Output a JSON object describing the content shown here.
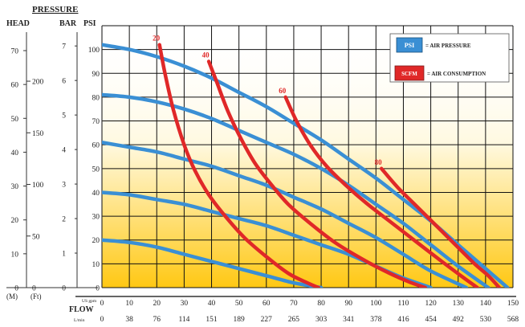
{
  "header": {
    "pressure": "PRESSURE",
    "head": "HEAD",
    "bar": "BAR",
    "psi": "PSI",
    "unit_m": "(M)",
    "unit_ft": "(Ft)",
    "flow": "FLOW",
    "us_gpm": "US gpm",
    "lmin": "L/min"
  },
  "legend": {
    "psi_swatch": "PSI",
    "psi_text": "= AIR PRESSURE",
    "psi_color": "#3a8fd4",
    "scfm_swatch": "SCFM",
    "scfm_text": "= AIR CONSUMPTION",
    "scfm_color": "#e02828"
  },
  "colors": {
    "gradient_top": "#fff9e0",
    "gradient_bottom": "#ffc814",
    "grid": "#111111"
  },
  "chart_data": {
    "type": "line",
    "title": "",
    "xlabel": "FLOW",
    "xlim": [
      0,
      150
    ],
    "ylim": [
      0,
      110
    ],
    "x_ticks_gpm": [
      "0",
      "10",
      "20",
      "30",
      "40",
      "50",
      "60",
      "70",
      "80",
      "90",
      "100",
      "110",
      "120",
      "130",
      "140",
      "150"
    ],
    "x_ticks_lmin": [
      "0",
      "38",
      "76",
      "114",
      "151",
      "189",
      "227",
      "265",
      "303",
      "341",
      "378",
      "416",
      "454",
      "492",
      "530",
      "568"
    ],
    "psi_ticks": [
      "0",
      "10",
      "20",
      "30",
      "40",
      "50",
      "60",
      "70",
      "80",
      "90",
      "100"
    ],
    "bar_ticks": [
      "0",
      "1",
      "2",
      "3",
      "4",
      "5",
      "6",
      "7"
    ],
    "head_m_ticks": [
      "0",
      "10",
      "20",
      "30",
      "40",
      "50",
      "60",
      "70"
    ],
    "head_ft_ticks": [
      "0",
      "50",
      "100",
      "150",
      "200"
    ],
    "series": [
      {
        "name": "100",
        "kind": "psi",
        "x": [
          0,
          10,
          20,
          30,
          40,
          50,
          60,
          70,
          80,
          90,
          100,
          110,
          120,
          130,
          140,
          148
        ],
        "y": [
          102,
          100,
          97,
          93,
          88,
          82,
          76,
          69,
          62,
          54,
          46,
          37,
          28,
          18,
          8,
          0
        ]
      },
      {
        "name": "80",
        "kind": "psi",
        "x": [
          0,
          10,
          20,
          30,
          40,
          50,
          60,
          70,
          80,
          90,
          100,
          110,
          120,
          130,
          141
        ],
        "y": [
          81,
          80,
          78,
          75,
          71,
          66,
          61,
          56,
          50,
          43,
          35,
          27,
          18,
          9,
          0
        ]
      },
      {
        "name": "60",
        "kind": "psi",
        "x": [
          0,
          10,
          20,
          30,
          40,
          50,
          60,
          70,
          80,
          90,
          100,
          110,
          120,
          133
        ],
        "y": [
          61,
          59,
          57,
          54,
          51,
          47,
          43,
          38,
          33,
          27,
          21,
          14,
          7,
          0
        ]
      },
      {
        "name": "40",
        "kind": "psi",
        "x": [
          0,
          10,
          20,
          30,
          40,
          50,
          60,
          70,
          80,
          90,
          100,
          110,
          120
        ],
        "y": [
          40,
          39,
          37,
          35,
          32,
          29,
          26,
          22,
          18,
          14,
          9,
          4,
          0
        ]
      },
      {
        "name": "20",
        "kind": "psi",
        "x": [
          0,
          10,
          20,
          30,
          40,
          50,
          60,
          70,
          80
        ],
        "y": [
          20,
          19,
          17,
          14,
          11,
          8,
          5,
          2,
          0
        ]
      },
      {
        "name": "20",
        "kind": "scfm",
        "x": [
          21,
          23,
          26,
          30,
          34,
          39,
          45,
          52,
          60,
          68,
          75,
          79
        ],
        "y": [
          102,
          90,
          75,
          60,
          49,
          39,
          30,
          21,
          13,
          6,
          2,
          0
        ]
      },
      {
        "name": "40",
        "kind": "scfm",
        "x": [
          39,
          42,
          46,
          51,
          56,
          62,
          68,
          76,
          85,
          95,
          105,
          113,
          118
        ],
        "y": [
          95,
          86,
          74,
          62,
          52,
          43,
          35,
          27,
          19,
          12,
          6,
          2,
          0
        ]
      },
      {
        "name": "60",
        "kind": "scfm",
        "x": [
          67,
          71,
          76,
          82,
          89,
          97,
          106,
          115,
          124,
          131,
          137
        ],
        "y": [
          80,
          70,
          60,
          51,
          43,
          35,
          27,
          19,
          11,
          5,
          0
        ]
      },
      {
        "name": "80",
        "kind": "scfm",
        "x": [
          102,
          108,
          115,
          122,
          129,
          136,
          141,
          145
        ],
        "y": [
          50,
          42,
          34,
          26,
          18,
          10,
          5,
          0
        ]
      }
    ]
  }
}
